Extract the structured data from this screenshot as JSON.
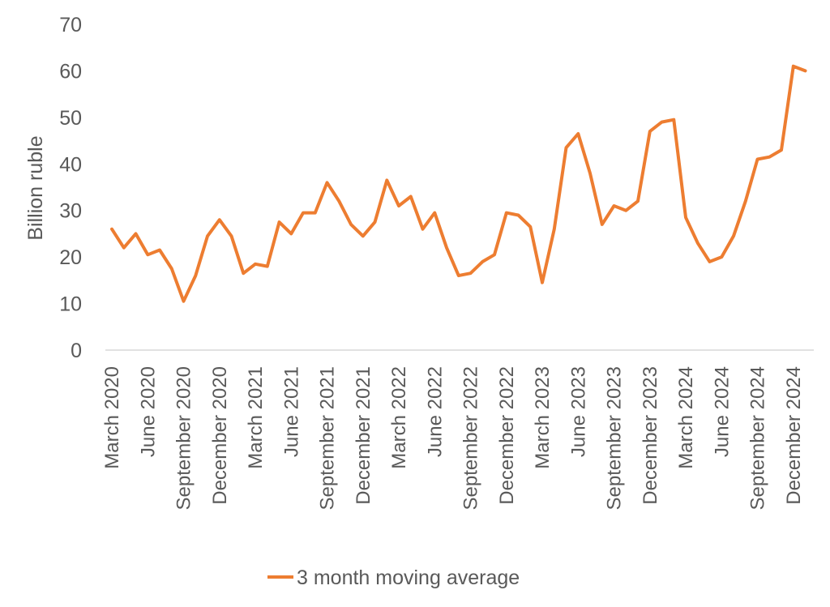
{
  "chart_data": {
    "type": "line",
    "title": "",
    "xlabel": "",
    "ylabel": "Billion ruble",
    "ylim": [
      0,
      70
    ],
    "yticks": [
      0,
      10,
      20,
      30,
      40,
      50,
      60,
      70
    ],
    "grid": false,
    "legend_position": "bottom",
    "x": [
      "March 2020",
      "April 2020",
      "May 2020",
      "June 2020",
      "July 2020",
      "August 2020",
      "September 2020",
      "October 2020",
      "November 2020",
      "December 2020",
      "January 2021",
      "February 2021",
      "March 2021",
      "April 2021",
      "May 2021",
      "June 2021",
      "July 2021",
      "August 2021",
      "September 2021",
      "October 2021",
      "November 2021",
      "December 2021",
      "January 2022",
      "February 2022",
      "March 2022",
      "April 2022",
      "May 2022",
      "June 2022",
      "July 2022",
      "August 2022",
      "September 2022",
      "October 2022",
      "November 2022",
      "December 2022",
      "January 2023",
      "February 2023",
      "March 2023",
      "April 2023",
      "May 2023",
      "June 2023",
      "July 2023",
      "August 2023",
      "September 2023",
      "October 2023",
      "November 2023",
      "December 2023",
      "January 2024",
      "February 2024",
      "March 2024",
      "April 2024",
      "May 2024",
      "June 2024",
      "July 2024",
      "August 2024",
      "September 2024",
      "October 2024",
      "November 2024",
      "December 2024",
      "January 2025"
    ],
    "x_tick_labels": [
      "March 2020",
      "June 2020",
      "September 2020",
      "December 2020",
      "March 2021",
      "June 2021",
      "September 2021",
      "December 2021",
      "March 2022",
      "June 2022",
      "September 2022",
      "December 2022",
      "March 2023",
      "June 2023",
      "September 2023",
      "December 2023",
      "March 2024",
      "June 2024",
      "September 2024",
      "December 2024"
    ],
    "series": [
      {
        "name": "3 month moving average",
        "color": "#ED7D31",
        "values": [
          26.0,
          22.0,
          25.0,
          20.5,
          21.5,
          17.5,
          10.5,
          16.0,
          24.5,
          28.0,
          24.5,
          16.5,
          18.5,
          18.0,
          27.5,
          25.0,
          29.5,
          29.5,
          36.0,
          32.0,
          27.0,
          24.5,
          27.5,
          36.5,
          31.0,
          33.0,
          26.0,
          29.5,
          22.0,
          16.0,
          16.5,
          19.0,
          20.5,
          29.5,
          29.0,
          26.5,
          14.5,
          26.0,
          43.5,
          46.5,
          38.0,
          27.0,
          31.0,
          30.0,
          32.0,
          47.0,
          49.0,
          49.5,
          28.5,
          23.0,
          19.0,
          20.0,
          24.5,
          32.0,
          41.0,
          41.5,
          43.0,
          61.0,
          60.0
        ]
      }
    ]
  }
}
